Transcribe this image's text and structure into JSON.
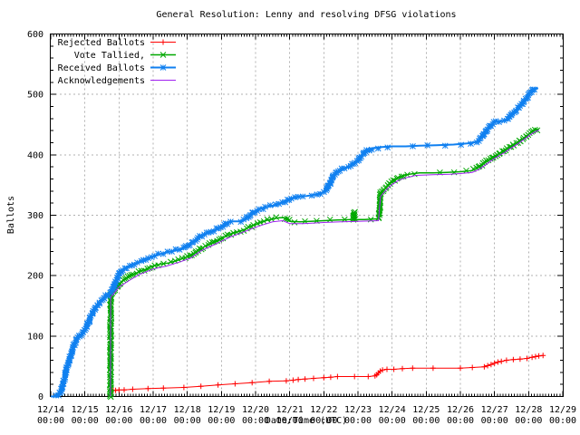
{
  "chart_data": {
    "type": "line",
    "title": "General Resolution: Lenny and resolving DFSG violations",
    "xlabel": "Date/Time (UTC)",
    "ylabel": "Ballots",
    "ylim": [
      0,
      600
    ],
    "xlim_days": [
      0,
      15
    ],
    "grid": true,
    "legend_position": "top-left",
    "y_ticks": [
      0,
      100,
      200,
      300,
      400,
      500,
      600
    ],
    "y_minor_step": 20,
    "x_minor_per_day": 12,
    "x_tick_labels": [
      [
        "12/14",
        "00:00"
      ],
      [
        "12/15",
        "00:00"
      ],
      [
        "12/16",
        "00:00"
      ],
      [
        "12/17",
        "00:00"
      ],
      [
        "12/18",
        "00:00"
      ],
      [
        "12/19",
        "00:00"
      ],
      [
        "12/20",
        "00:00"
      ],
      [
        "12/21",
        "00:00"
      ],
      [
        "12/22",
        "00:00"
      ],
      [
        "12/23",
        "00:00"
      ],
      [
        "12/24",
        "00:00"
      ],
      [
        "12/25",
        "00:00"
      ],
      [
        "12/26",
        "00:00"
      ],
      [
        "12/27",
        "00:00"
      ],
      [
        "12/28",
        "00:00"
      ],
      [
        "12/29",
        "00:00"
      ]
    ],
    "colors": {
      "rejected": "#ff0000",
      "tallied": "#00a800",
      "received": "#1080f0",
      "acknowledgements": "#a020f0",
      "grid": "#b0b0b0",
      "border": "#000000"
    },
    "series": [
      {
        "name": "Rejected Ballots",
        "color": "#ff0000",
        "marker": "plus",
        "dense": false,
        "width": 1,
        "points": [
          [
            1.76,
            10
          ],
          [
            1.83,
            10
          ],
          [
            1.9,
            10
          ],
          [
            2.0,
            11
          ],
          [
            2.15,
            11
          ],
          [
            2.4,
            12
          ],
          [
            2.85,
            13
          ],
          [
            3.3,
            14
          ],
          [
            3.9,
            15
          ],
          [
            4.4,
            17
          ],
          [
            4.9,
            19
          ],
          [
            5.4,
            21
          ],
          [
            5.9,
            23
          ],
          [
            6.4,
            25
          ],
          [
            6.9,
            26
          ],
          [
            7.1,
            27
          ],
          [
            7.25,
            28
          ],
          [
            7.45,
            29
          ],
          [
            7.7,
            30
          ],
          [
            8.0,
            31
          ],
          [
            8.2,
            32
          ],
          [
            8.4,
            33
          ],
          [
            8.9,
            33
          ],
          [
            9.3,
            33
          ],
          [
            9.5,
            34
          ],
          [
            9.55,
            36
          ],
          [
            9.6,
            39
          ],
          [
            9.65,
            42
          ],
          [
            9.72,
            44
          ],
          [
            9.85,
            45
          ],
          [
            10.05,
            45
          ],
          [
            10.3,
            46
          ],
          [
            10.6,
            47
          ],
          [
            11.2,
            47
          ],
          [
            12.0,
            47
          ],
          [
            12.35,
            48
          ],
          [
            12.7,
            49
          ],
          [
            12.8,
            51
          ],
          [
            12.9,
            53
          ],
          [
            13.0,
            55
          ],
          [
            13.1,
            57
          ],
          [
            13.2,
            58
          ],
          [
            13.35,
            60
          ],
          [
            13.55,
            61
          ],
          [
            13.75,
            62
          ],
          [
            13.95,
            63
          ],
          [
            14.1,
            65
          ],
          [
            14.2,
            66
          ],
          [
            14.3,
            67
          ],
          [
            14.42,
            68
          ]
        ]
      },
      {
        "name": "Vote Tallied,",
        "color": "#00a800",
        "marker": "x",
        "dense": true,
        "width": 1.5,
        "points": [
          [
            1.75,
            0
          ],
          [
            1.755,
            168
          ],
          [
            1.8,
            172
          ],
          [
            1.88,
            178
          ],
          [
            2.0,
            186
          ],
          [
            2.1,
            191
          ],
          [
            2.25,
            196
          ],
          [
            2.4,
            201
          ],
          [
            2.6,
            207
          ],
          [
            2.8,
            211
          ],
          [
            3.0,
            216
          ],
          [
            3.2,
            219
          ],
          [
            3.45,
            221
          ],
          [
            3.7,
            225
          ],
          [
            3.9,
            229
          ],
          [
            4.1,
            234
          ],
          [
            4.3,
            241
          ],
          [
            4.5,
            248
          ],
          [
            4.7,
            253
          ],
          [
            4.9,
            259
          ],
          [
            5.1,
            264
          ],
          [
            5.3,
            270
          ],
          [
            5.5,
            273
          ],
          [
            5.7,
            277
          ],
          [
            5.9,
            283
          ],
          [
            6.1,
            287
          ],
          [
            6.3,
            291
          ],
          [
            6.5,
            294
          ],
          [
            6.7,
            296
          ],
          [
            6.85,
            296
          ],
          [
            7.0,
            290
          ],
          [
            7.3,
            289
          ],
          [
            7.6,
            290
          ],
          [
            8.0,
            291
          ],
          [
            8.4,
            292
          ],
          [
            8.86,
            293
          ],
          [
            8.89,
            305
          ],
          [
            8.92,
            293
          ],
          [
            9.2,
            293
          ],
          [
            9.55,
            294
          ],
          [
            9.62,
            294
          ],
          [
            9.66,
            337
          ],
          [
            9.75,
            342
          ],
          [
            9.85,
            347
          ],
          [
            10.0,
            356
          ],
          [
            10.15,
            361
          ],
          [
            10.3,
            365
          ],
          [
            10.5,
            368
          ],
          [
            10.8,
            370
          ],
          [
            11.2,
            370
          ],
          [
            11.6,
            371
          ],
          [
            12.0,
            372
          ],
          [
            12.35,
            374
          ],
          [
            12.5,
            378
          ],
          [
            12.65,
            384
          ],
          [
            12.8,
            390
          ],
          [
            12.95,
            396
          ],
          [
            13.1,
            401
          ],
          [
            13.25,
            406
          ],
          [
            13.4,
            411
          ],
          [
            13.55,
            416
          ],
          [
            13.7,
            421
          ],
          [
            13.85,
            427
          ],
          [
            14.0,
            434
          ],
          [
            14.1,
            438
          ],
          [
            14.2,
            441
          ],
          [
            14.3,
            443
          ]
        ]
      },
      {
        "name": "Received Ballots",
        "color": "#1080f0",
        "marker": "asterisk",
        "dense": true,
        "width": 2,
        "points": [
          [
            0.0,
            0
          ],
          [
            0.12,
            0
          ],
          [
            0.22,
            2
          ],
          [
            0.3,
            8
          ],
          [
            0.36,
            20
          ],
          [
            0.42,
            35
          ],
          [
            0.5,
            52
          ],
          [
            0.58,
            68
          ],
          [
            0.68,
            85
          ],
          [
            0.78,
            95
          ],
          [
            0.9,
            103
          ],
          [
            1.0,
            110
          ],
          [
            1.1,
            122
          ],
          [
            1.2,
            134
          ],
          [
            1.3,
            146
          ],
          [
            1.45,
            157
          ],
          [
            1.6,
            165
          ],
          [
            1.75,
            172
          ],
          [
            1.85,
            182
          ],
          [
            1.95,
            196
          ],
          [
            2.05,
            207
          ],
          [
            2.2,
            213
          ],
          [
            2.35,
            217
          ],
          [
            2.5,
            220
          ],
          [
            2.7,
            224
          ],
          [
            2.9,
            230
          ],
          [
            3.1,
            234
          ],
          [
            3.35,
            238
          ],
          [
            3.6,
            241
          ],
          [
            3.85,
            245
          ],
          [
            4.0,
            250
          ],
          [
            4.15,
            255
          ],
          [
            4.3,
            261
          ],
          [
            4.45,
            267
          ],
          [
            4.6,
            271
          ],
          [
            4.75,
            274
          ],
          [
            4.9,
            278
          ],
          [
            5.05,
            283
          ],
          [
            5.2,
            288
          ],
          [
            5.35,
            290
          ],
          [
            5.55,
            290
          ],
          [
            5.7,
            293
          ],
          [
            5.85,
            300
          ],
          [
            6.0,
            307
          ],
          [
            6.15,
            311
          ],
          [
            6.35,
            314
          ],
          [
            6.55,
            316
          ],
          [
            6.75,
            320
          ],
          [
            6.95,
            325
          ],
          [
            7.1,
            328
          ],
          [
            7.3,
            331
          ],
          [
            7.5,
            332
          ],
          [
            7.75,
            334
          ],
          [
            7.95,
            337
          ],
          [
            8.08,
            341
          ],
          [
            8.18,
            352
          ],
          [
            8.28,
            365
          ],
          [
            8.38,
            372
          ],
          [
            8.55,
            377
          ],
          [
            8.75,
            381
          ],
          [
            8.95,
            388
          ],
          [
            9.05,
            393
          ],
          [
            9.15,
            401
          ],
          [
            9.28,
            408
          ],
          [
            9.45,
            411
          ],
          [
            9.7,
            413
          ],
          [
            10.0,
            414
          ],
          [
            10.4,
            414
          ],
          [
            10.8,
            415
          ],
          [
            11.3,
            416
          ],
          [
            11.8,
            417
          ],
          [
            12.2,
            419
          ],
          [
            12.45,
            421
          ],
          [
            12.6,
            427
          ],
          [
            12.72,
            436
          ],
          [
            12.85,
            446
          ],
          [
            12.95,
            452
          ],
          [
            13.05,
            455
          ],
          [
            13.2,
            456
          ],
          [
            13.35,
            457
          ],
          [
            13.45,
            463
          ],
          [
            13.55,
            470
          ],
          [
            13.7,
            478
          ],
          [
            13.85,
            487
          ],
          [
            13.95,
            495
          ],
          [
            14.05,
            503
          ],
          [
            14.15,
            508
          ],
          [
            14.22,
            510
          ],
          [
            14.28,
            510
          ]
        ]
      },
      {
        "name": "Acknowledgements",
        "color": "#a020f0",
        "marker": "none",
        "dense": false,
        "width": 1,
        "points": [
          [
            1.75,
            0
          ],
          [
            1.755,
            164
          ],
          [
            2.0,
            181
          ],
          [
            2.3,
            192
          ],
          [
            2.6,
            202
          ],
          [
            3.0,
            211
          ],
          [
            3.4,
            216
          ],
          [
            3.8,
            223
          ],
          [
            4.1,
            229
          ],
          [
            4.4,
            241
          ],
          [
            4.7,
            249
          ],
          [
            5.0,
            257
          ],
          [
            5.3,
            265
          ],
          [
            5.6,
            271
          ],
          [
            5.9,
            278
          ],
          [
            6.2,
            284
          ],
          [
            6.5,
            289
          ],
          [
            6.8,
            291
          ],
          [
            7.0,
            286
          ],
          [
            7.4,
            286
          ],
          [
            8.0,
            288
          ],
          [
            8.5,
            289
          ],
          [
            9.0,
            290
          ],
          [
            9.6,
            291
          ],
          [
            9.66,
            331
          ],
          [
            9.8,
            340
          ],
          [
            10.0,
            351
          ],
          [
            10.2,
            358
          ],
          [
            10.4,
            362
          ],
          [
            10.7,
            366
          ],
          [
            11.2,
            367
          ],
          [
            11.7,
            368
          ],
          [
            12.0,
            369
          ],
          [
            12.35,
            371
          ],
          [
            12.55,
            376
          ],
          [
            12.7,
            382
          ],
          [
            12.85,
            388
          ],
          [
            13.0,
            394
          ],
          [
            13.15,
            399
          ],
          [
            13.3,
            404
          ],
          [
            13.45,
            410
          ],
          [
            13.6,
            415
          ],
          [
            13.75,
            421
          ],
          [
            13.9,
            427
          ],
          [
            14.05,
            433
          ],
          [
            14.15,
            437
          ],
          [
            14.3,
            441
          ]
        ]
      }
    ]
  }
}
